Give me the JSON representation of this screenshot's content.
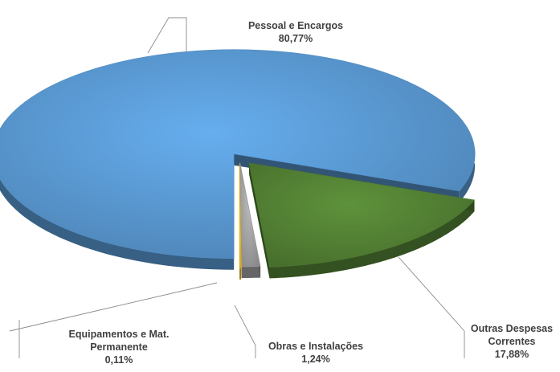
{
  "chart_data": {
    "type": "pie",
    "title": "",
    "slices": [
      {
        "name": "Pessoal e Encargos",
        "label_lines": [
          "Pessoal e Encargos"
        ],
        "value": 80.77,
        "value_label": "80,77%",
        "color": "#5B9BD5"
      },
      {
        "name": "Outras Despesas Correntes",
        "label_lines": [
          "Outras Despesas",
          "Correntes"
        ],
        "value": 17.88,
        "value_label": "17,88%",
        "color": "#548235"
      },
      {
        "name": "Obras e Instalações",
        "label_lines": [
          "Obras e Instalações"
        ],
        "value": 1.24,
        "value_label": "1,24%",
        "color": "#A5A5A5"
      },
      {
        "name": "Equipamentos e Mat. Permanente",
        "label_lines": [
          "Equipamentos e Mat.",
          "Permanente"
        ],
        "value": 0.11,
        "value_label": "0,11%",
        "color": "#FFC000"
      }
    ],
    "legend": "none",
    "style": "3d-exploded"
  }
}
